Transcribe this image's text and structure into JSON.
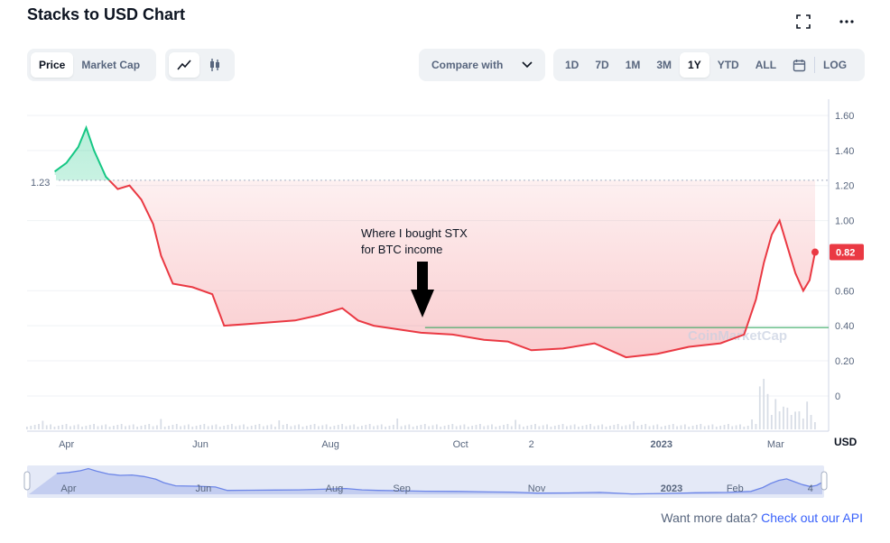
{
  "header": {
    "title": "Stacks to USD Chart",
    "fullscreen_icon": "fullscreen-icon",
    "more_icon": "more-horizontal-icon"
  },
  "toolbar": {
    "metric_tabs": [
      {
        "label": "Price",
        "active": true
      },
      {
        "label": "Market Cap",
        "active": false
      }
    ],
    "chart_type_icons": [
      "line-chart-icon",
      "candlestick-icon"
    ],
    "compare_label": "Compare with",
    "ranges": [
      {
        "label": "1D",
        "active": false
      },
      {
        "label": "7D",
        "active": false
      },
      {
        "label": "1M",
        "active": false
      },
      {
        "label": "3M",
        "active": false
      },
      {
        "label": "1Y",
        "active": true
      },
      {
        "label": "YTD",
        "active": false
      },
      {
        "label": "ALL",
        "active": false
      }
    ],
    "calendar_icon": "calendar-icon",
    "log_label": "LOG"
  },
  "colors": {
    "up": "#16c784",
    "down": "#ea3943",
    "grid": "#eff2f5",
    "text_muted": "#58667e",
    "ref_line": "#22a050"
  },
  "chart_data": {
    "type": "line",
    "x_ticks": [
      "Apr",
      "Jun",
      "Aug",
      "Oct",
      "2",
      "2023",
      "Mar"
    ],
    "y_ticks": [
      "1.60",
      "1.40",
      "1.20",
      "1.00",
      "0.60",
      "0.40",
      "0.20"
    ],
    "volume_tick": "0",
    "y_unit": "USD",
    "ylim": [
      0.2,
      1.6
    ],
    "start_label": "1.23",
    "start_price": 1.23,
    "current_price": 0.82,
    "current_label": "0.82",
    "price_series": [
      [
        0.035,
        1.28
      ],
      [
        0.05,
        1.33
      ],
      [
        0.065,
        1.42
      ],
      [
        0.075,
        1.53
      ],
      [
        0.085,
        1.4
      ],
      [
        0.1,
        1.25
      ],
      [
        0.115,
        1.18
      ],
      [
        0.13,
        1.2
      ],
      [
        0.145,
        1.12
      ],
      [
        0.16,
        0.98
      ],
      [
        0.17,
        0.8
      ],
      [
        0.185,
        0.64
      ],
      [
        0.21,
        0.62
      ],
      [
        0.235,
        0.58
      ],
      [
        0.25,
        0.4
      ],
      [
        0.28,
        0.41
      ],
      [
        0.31,
        0.42
      ],
      [
        0.34,
        0.43
      ],
      [
        0.37,
        0.46
      ],
      [
        0.4,
        0.5
      ],
      [
        0.42,
        0.43
      ],
      [
        0.44,
        0.4
      ],
      [
        0.47,
        0.38
      ],
      [
        0.5,
        0.36
      ],
      [
        0.54,
        0.35
      ],
      [
        0.58,
        0.32
      ],
      [
        0.61,
        0.31
      ],
      [
        0.64,
        0.26
      ],
      [
        0.68,
        0.27
      ],
      [
        0.72,
        0.3
      ],
      [
        0.76,
        0.22
      ],
      [
        0.8,
        0.24
      ],
      [
        0.84,
        0.28
      ],
      [
        0.88,
        0.3
      ],
      [
        0.91,
        0.35
      ],
      [
        0.925,
        0.55
      ],
      [
        0.935,
        0.76
      ],
      [
        0.945,
        0.92
      ],
      [
        0.955,
        1.0
      ],
      [
        0.965,
        0.85
      ],
      [
        0.975,
        0.7
      ],
      [
        0.985,
        0.6
      ],
      [
        0.993,
        0.66
      ],
      [
        1.0,
        0.82
      ]
    ],
    "volume_spikes": [
      [
        0.93,
        0.85
      ],
      [
        0.935,
        1.0
      ],
      [
        0.94,
        0.7
      ],
      [
        0.95,
        0.6
      ],
      [
        0.96,
        0.45
      ],
      [
        0.975,
        0.35
      ],
      [
        0.99,
        0.55
      ]
    ],
    "reference_price": 0.39,
    "annotation": {
      "text_line1": "Where I bought STX",
      "text_line2": "for BTC income",
      "x": 0.505
    },
    "watermark": "CoinMarketCap",
    "navigator_ticks": [
      "Apr",
      "Jun",
      "Aug",
      "Sep",
      "Nov",
      "2023",
      "Feb",
      "4"
    ]
  },
  "footer": {
    "text": "Want more data? ",
    "link": "Check out our API"
  }
}
